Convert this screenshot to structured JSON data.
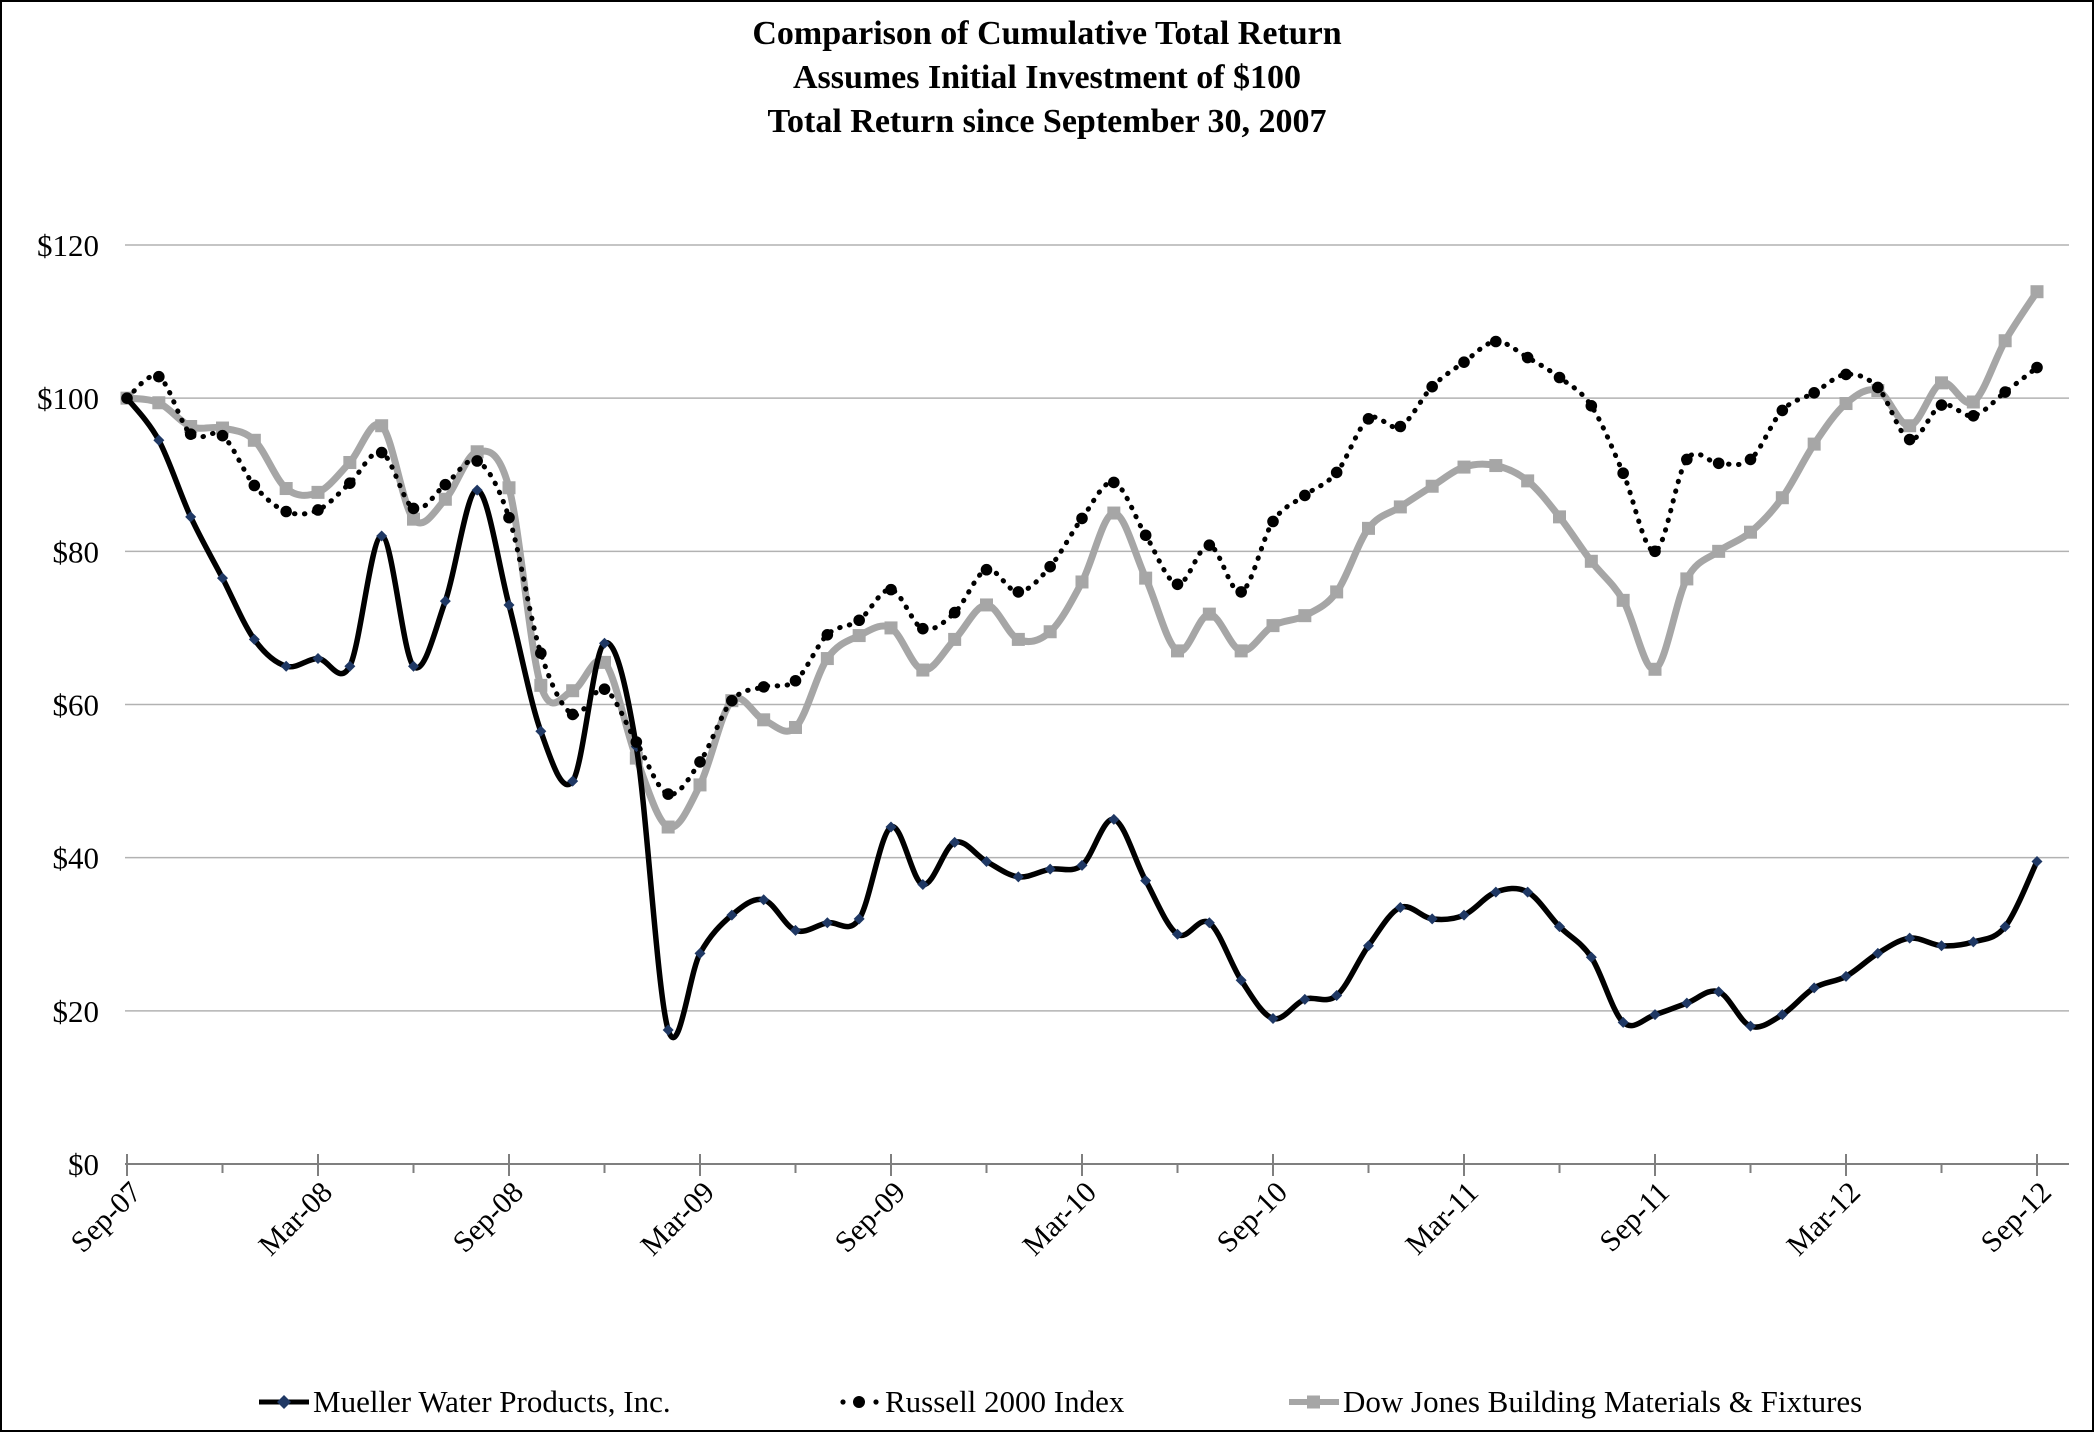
{
  "title": {
    "line1": "Comparison of Cumulative Total Return",
    "line2": "Assumes Initial Investment of $100",
    "line3": "Total Return since September 30, 2007"
  },
  "chart_data": {
    "type": "line",
    "subtype": "smooth-line-with-markers",
    "frequency": "monthly",
    "start_month": "Sep-07",
    "end_month": "Sep-12",
    "n_points": 61,
    "ylim": [
      0,
      120
    ],
    "y_tick_step": 20,
    "y_tick_labels": [
      "$0",
      "$20",
      "$40",
      "$60",
      "$80",
      "$100",
      "$120"
    ],
    "x_tick_labels": [
      "Sep-07",
      "Mar-08",
      "Sep-08",
      "Mar-09",
      "Sep-09",
      "Mar-10",
      "Sep-10",
      "Mar-11",
      "Sep-11",
      "Mar-12",
      "Sep-12"
    ],
    "x_major_tick_every_months": 6,
    "x_minor_tick_every_months": 3,
    "grid": "horizontal",
    "legend_position": "bottom",
    "series": [
      {
        "name": "Mueller Water Products, Inc.",
        "line_style": "solid",
        "color": "#000000",
        "marker": "diamond",
        "marker_color": "#1f3864",
        "values": [
          100,
          94.5,
          84.5,
          76.5,
          68.5,
          65,
          66,
          65,
          82,
          65,
          73.5,
          88,
          73,
          56.5,
          50,
          68,
          54.5,
          17.5,
          27.5,
          32.5,
          34.5,
          30.5,
          31.5,
          32,
          44,
          36.5,
          42,
          39.5,
          37.5,
          38.5,
          39,
          45,
          37,
          30,
          31.5,
          24,
          19,
          21.5,
          22,
          28.5,
          33.5,
          32,
          32.5,
          35.5,
          35.5,
          31,
          27,
          18.5,
          19.5,
          21,
          22.5,
          18,
          19.5,
          23,
          24.5,
          27.5,
          29.5,
          28.5,
          29,
          31,
          39.5
        ]
      },
      {
        "name": "Russell 2000 Index",
        "line_style": "dotted",
        "color": "#000000",
        "marker": "circle",
        "marker_color": "#000000",
        "values": [
          100,
          102.8,
          95.3,
          95.1,
          88.6,
          85.2,
          85.4,
          88.9,
          92.9,
          85.6,
          88.7,
          91.8,
          84.4,
          66.7,
          58.7,
          62,
          55.1,
          48.3,
          52.5,
          60.5,
          62.3,
          63.1,
          69.1,
          71,
          75,
          69.9,
          72,
          77.6,
          74.7,
          78,
          84.3,
          89,
          82.1,
          75.7,
          80.8,
          74.7,
          83.9,
          87.3,
          90.3,
          97.3,
          96.3,
          101.5,
          104.7,
          107.4,
          105.3,
          102.7,
          99,
          90.2,
          80,
          92,
          91.5,
          92,
          98.4,
          100.7,
          103.1,
          101.4,
          94.6,
          99.1,
          97.7,
          100.8,
          104
        ]
      },
      {
        "name": "Dow Jones Building Materials & Fixtures",
        "line_style": "solid",
        "color": "#a6a6a6",
        "marker": "square",
        "marker_color": "#a6a6a6",
        "values": [
          100,
          99.4,
          96.3,
          96.1,
          94.5,
          88.2,
          87.7,
          91.6,
          96.4,
          84.2,
          86.8,
          93,
          88.3,
          62.5,
          61.8,
          65.5,
          53,
          44,
          49.5,
          60.5,
          58,
          57,
          66,
          69,
          70,
          64.5,
          68.5,
          73,
          68.5,
          69.5,
          76,
          85,
          76.5,
          67,
          71.8,
          67,
          70.3,
          71.6,
          74.7,
          83,
          85.8,
          88.5,
          91,
          91.2,
          89.2,
          84.5,
          78.7,
          73.6,
          64.6,
          76.4,
          80,
          82.5,
          87,
          94,
          99.3,
          101,
          96.4,
          102,
          99.5,
          107.5,
          113.9
        ]
      }
    ]
  },
  "colors": {
    "background": "#ffffff",
    "border": "#000000",
    "gridline": "#b2b2b2",
    "axis": "#7f7f7f",
    "text": "#000000"
  }
}
